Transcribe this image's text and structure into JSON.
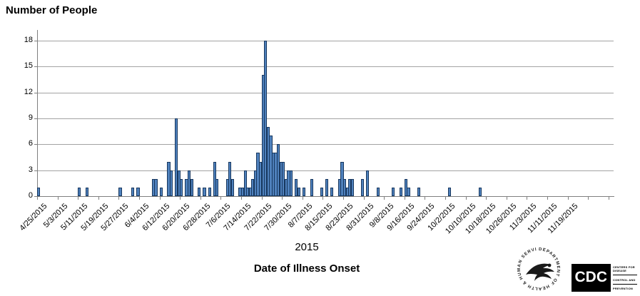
{
  "title": "Number of People",
  "chart_data": {
    "type": "bar",
    "title": "Number of People",
    "xlabel": "Date of Illness Onset",
    "x_group_label": "2015",
    "ylabel": "",
    "ylim": [
      0,
      18
    ],
    "yticks": [
      0,
      3,
      6,
      9,
      12,
      15,
      18
    ],
    "grid": "horizontal",
    "legend": "none",
    "bar_color": "#4f81bd",
    "bar_border_color": "#17375e",
    "x_start_date": "4/25/2015",
    "x_domain_days": 226,
    "x_tick_interval_days": 8,
    "x_tick_labels": [
      "4/25/2015",
      "5/3/2015",
      "5/11/2015",
      "5/19/2015",
      "5/27/2015",
      "6/4/2015",
      "6/12/2015",
      "6/20/2015",
      "6/28/2015",
      "7/6/2015",
      "7/14/2015",
      "7/22/2015",
      "7/30/2015",
      "8/7/2015",
      "8/15/2015",
      "8/23/2015",
      "8/31/2015",
      "9/8/2015",
      "9/16/2015",
      "9/24/2015",
      "10/2/2015",
      "10/10/2015",
      "10/18/2015",
      "10/26/2015",
      "11/3/2015",
      "11/11/2015",
      "11/19/2015"
    ],
    "points": [
      {
        "date": "4/25/2015",
        "count": 1
      },
      {
        "date": "5/11/2015",
        "count": 1
      },
      {
        "date": "5/14/2015",
        "count": 1
      },
      {
        "date": "5/27/2015",
        "count": 1
      },
      {
        "date": "6/1/2015",
        "count": 1
      },
      {
        "date": "6/3/2015",
        "count": 1
      },
      {
        "date": "6/9/2015",
        "count": 2
      },
      {
        "date": "6/10/2015",
        "count": 2
      },
      {
        "date": "6/12/2015",
        "count": 1
      },
      {
        "date": "6/15/2015",
        "count": 4
      },
      {
        "date": "6/16/2015",
        "count": 3
      },
      {
        "date": "6/18/2015",
        "count": 9
      },
      {
        "date": "6/19/2015",
        "count": 3
      },
      {
        "date": "6/20/2015",
        "count": 2
      },
      {
        "date": "6/22/2015",
        "count": 2
      },
      {
        "date": "6/23/2015",
        "count": 3
      },
      {
        "date": "6/24/2015",
        "count": 2
      },
      {
        "date": "6/27/2015",
        "count": 1
      },
      {
        "date": "6/29/2015",
        "count": 1
      },
      {
        "date": "7/1/2015",
        "count": 1
      },
      {
        "date": "7/3/2015",
        "count": 4
      },
      {
        "date": "7/4/2015",
        "count": 2
      },
      {
        "date": "7/8/2015",
        "count": 2
      },
      {
        "date": "7/9/2015",
        "count": 4
      },
      {
        "date": "7/10/2015",
        "count": 2
      },
      {
        "date": "7/13/2015",
        "count": 1
      },
      {
        "date": "7/14/2015",
        "count": 1
      },
      {
        "date": "7/15/2015",
        "count": 3
      },
      {
        "date": "7/16/2015",
        "count": 1
      },
      {
        "date": "7/17/2015",
        "count": 1
      },
      {
        "date": "7/18/2015",
        "count": 2
      },
      {
        "date": "7/19/2015",
        "count": 3
      },
      {
        "date": "7/20/2015",
        "count": 5
      },
      {
        "date": "7/21/2015",
        "count": 4
      },
      {
        "date": "7/22/2015",
        "count": 14
      },
      {
        "date": "7/23/2015",
        "count": 18
      },
      {
        "date": "7/24/2015",
        "count": 8
      },
      {
        "date": "7/25/2015",
        "count": 7
      },
      {
        "date": "7/26/2015",
        "count": 5
      },
      {
        "date": "7/27/2015",
        "count": 5
      },
      {
        "date": "7/28/2015",
        "count": 6
      },
      {
        "date": "7/29/2015",
        "count": 4
      },
      {
        "date": "7/30/2015",
        "count": 4
      },
      {
        "date": "7/31/2015",
        "count": 2
      },
      {
        "date": "8/1/2015",
        "count": 3
      },
      {
        "date": "8/2/2015",
        "count": 3
      },
      {
        "date": "8/4/2015",
        "count": 2
      },
      {
        "date": "8/5/2015",
        "count": 1
      },
      {
        "date": "8/7/2015",
        "count": 1
      },
      {
        "date": "8/10/2015",
        "count": 2
      },
      {
        "date": "8/14/2015",
        "count": 1
      },
      {
        "date": "8/16/2015",
        "count": 2
      },
      {
        "date": "8/18/2015",
        "count": 1
      },
      {
        "date": "8/21/2015",
        "count": 2
      },
      {
        "date": "8/22/2015",
        "count": 4
      },
      {
        "date": "8/23/2015",
        "count": 2
      },
      {
        "date": "8/24/2015",
        "count": 1
      },
      {
        "date": "8/25/2015",
        "count": 2
      },
      {
        "date": "8/26/2015",
        "count": 2
      },
      {
        "date": "8/30/2015",
        "count": 2
      },
      {
        "date": "9/1/2015",
        "count": 3
      },
      {
        "date": "9/5/2015",
        "count": 1
      },
      {
        "date": "9/11/2015",
        "count": 1
      },
      {
        "date": "9/14/2015",
        "count": 1
      },
      {
        "date": "9/16/2015",
        "count": 2
      },
      {
        "date": "9/17/2015",
        "count": 1
      },
      {
        "date": "9/21/2015",
        "count": 1
      },
      {
        "date": "10/3/2015",
        "count": 1
      },
      {
        "date": "10/15/2015",
        "count": 1
      }
    ]
  },
  "footer": {
    "hhs_text": "DEPARTMENT OF HEALTH & HUMAN SERVICES • USA",
    "cdc_letters": "CDC",
    "cdc_line1": "CENTERS FOR DISEASE",
    "cdc_line2": "CONTROL AND",
    "cdc_line3": "PREVENTION"
  }
}
